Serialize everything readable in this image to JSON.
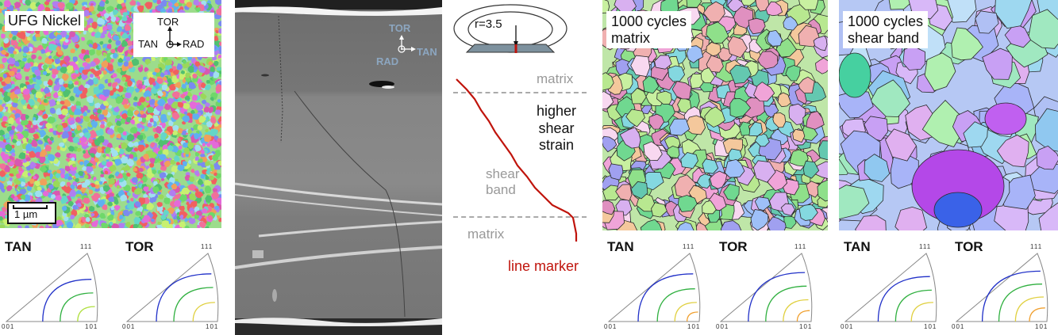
{
  "panel1": {
    "title": "UFG Nickel",
    "axes": {
      "top": "TOR",
      "left": "TAN",
      "right": "RAD"
    },
    "scalebar": "1 µm"
  },
  "sem": {
    "axes": {
      "top": "TOR",
      "left": "RAD",
      "right": "TAN"
    }
  },
  "schematic": {
    "radius_label": "r=3.5",
    "matrix_top": "matrix",
    "shear_strain": "higher shear strain",
    "shear_band": "shear band",
    "matrix_bottom": "matrix",
    "line_marker": "line marker"
  },
  "panel3": {
    "title_line1": "1000 cycles",
    "title_line2": "matrix"
  },
  "panel4": {
    "title_line1": "1000 cycles",
    "title_line2": "shear band"
  },
  "pole_figures": [
    {
      "title": "TAN",
      "top": "111",
      "left": "001",
      "right": "101"
    },
    {
      "title": "TOR",
      "top": "111",
      "left": "001",
      "right": "101"
    },
    {
      "title": "TAN",
      "top": "111",
      "left": "001",
      "right": "101"
    },
    {
      "title": "TOR",
      "top": "111",
      "left": "001",
      "right": "101"
    },
    {
      "title": "TAN",
      "top": "111",
      "left": "001",
      "right": "101"
    },
    {
      "title": "TOR",
      "top": "111",
      "left": "001",
      "right": "101"
    }
  ],
  "colors": {
    "line_marker": "#c0140c",
    "grey_label": "#999999",
    "axis_label_sem": "#8ca6c0"
  }
}
